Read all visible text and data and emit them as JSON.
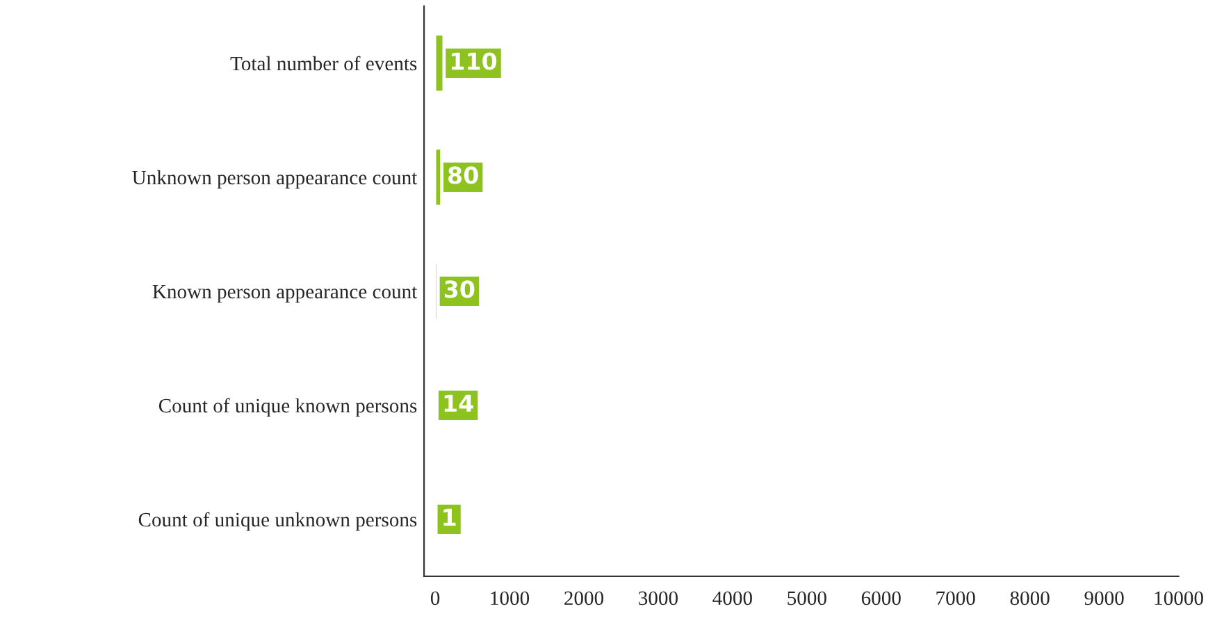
{
  "chart_data": {
    "type": "bar",
    "orientation": "horizontal",
    "categories": [
      "Total number of events",
      "Unknown person appearance count",
      "Known person appearance count",
      "Count of unique known persons",
      "Count of unique unknown persons"
    ],
    "values": [
      110,
      80,
      30,
      14,
      1
    ],
    "color": "#8dc21f",
    "data_labels": true,
    "xlim": [
      -150,
      10000
    ],
    "xticks": [
      0,
      1000,
      2000,
      3000,
      4000,
      5000,
      6000,
      7000,
      8000,
      9000,
      10000
    ],
    "grid": false,
    "legend": false
  }
}
